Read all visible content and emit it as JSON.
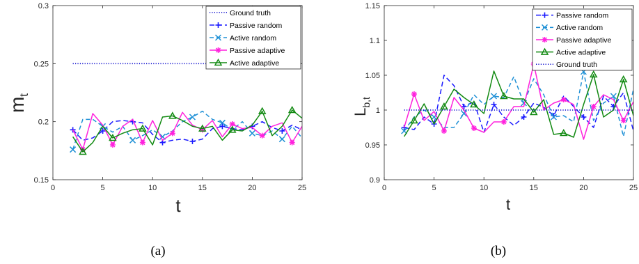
{
  "captions": [
    "(a)",
    "(b)"
  ],
  "chart_data": [
    {
      "type": "line",
      "xlabel": "t",
      "ylabel": "m",
      "ylabel_sub": "t",
      "xlim": [
        0,
        25
      ],
      "ylim": [
        0.15,
        0.3
      ],
      "xticks": [
        "0",
        "5",
        "10",
        "15",
        "20",
        "25"
      ],
      "yticks": [
        "0.15",
        "0.2",
        "0.25",
        "0.3"
      ],
      "grid": false,
      "legend_position": "top-right",
      "series": [
        {
          "name": "Ground truth",
          "color": "#0000cc",
          "dash": "1.2,2.2",
          "marker": "none",
          "marker_every": 1,
          "marker_start": 0,
          "x": [
            2,
            25
          ],
          "y": [
            0.25,
            0.25
          ]
        },
        {
          "name": "Passive random",
          "color": "#1a1aff",
          "dash": "7,4",
          "marker": "plus",
          "marker_every": 3,
          "marker_start": 0,
          "x": [
            2,
            3,
            4,
            5,
            6,
            7,
            8,
            9,
            10,
            11,
            12,
            13,
            14,
            15,
            16,
            17,
            18,
            19,
            20,
            21,
            22,
            23,
            24,
            25
          ],
          "y": [
            0.193,
            0.184,
            0.186,
            0.192,
            0.2,
            0.201,
            0.2,
            0.199,
            0.189,
            0.182,
            0.184,
            0.185,
            0.183,
            0.185,
            0.194,
            0.196,
            0.194,
            0.193,
            0.196,
            0.2,
            0.195,
            0.192,
            0.197,
            0.193
          ]
        },
        {
          "name": "Active random",
          "color": "#1e90d6",
          "dash": "6,4",
          "marker": "x",
          "marker_every": 3,
          "marker_start": 0,
          "x": [
            2,
            3,
            4,
            5,
            6,
            7,
            8,
            9,
            10,
            11,
            12,
            13,
            14,
            15,
            16,
            17,
            18,
            19,
            20,
            21,
            22,
            23,
            24,
            25
          ],
          "y": [
            0.176,
            0.202,
            0.202,
            0.196,
            0.191,
            0.196,
            0.184,
            0.188,
            0.193,
            0.187,
            0.192,
            0.2,
            0.204,
            0.209,
            0.202,
            0.199,
            0.193,
            0.2,
            0.19,
            0.188,
            0.192,
            0.185,
            0.196,
            0.186
          ]
        },
        {
          "name": "Passive adaptive",
          "color": "#ff22dd",
          "dash": "none",
          "marker": "asterisk",
          "marker_every": 3,
          "marker_start": 1,
          "x": [
            2,
            3,
            4,
            5,
            6,
            7,
            8,
            9,
            10,
            11,
            12,
            13,
            14,
            15,
            16,
            17,
            18,
            19,
            20,
            21,
            22,
            23,
            24,
            25
          ],
          "y": [
            0.193,
            0.176,
            0.207,
            0.197,
            0.18,
            0.196,
            0.202,
            0.182,
            0.201,
            0.184,
            0.19,
            0.208,
            0.197,
            0.193,
            0.201,
            0.187,
            0.198,
            0.194,
            0.195,
            0.188,
            0.196,
            0.199,
            0.182,
            0.196
          ]
        },
        {
          "name": "Active adaptive",
          "color": "#128a12",
          "dash": "none",
          "marker": "triangle",
          "marker_every": 3,
          "marker_start": 1,
          "x": [
            2,
            3,
            4,
            5,
            6,
            7,
            8,
            9,
            10,
            11,
            12,
            13,
            14,
            15,
            16,
            17,
            18,
            19,
            20,
            21,
            22,
            23,
            24,
            25
          ],
          "y": [
            0.187,
            0.174,
            0.182,
            0.196,
            0.186,
            0.19,
            0.193,
            0.194,
            0.18,
            0.204,
            0.205,
            0.201,
            0.196,
            0.194,
            0.196,
            0.184,
            0.193,
            0.192,
            0.197,
            0.209,
            0.188,
            0.196,
            0.21,
            0.203
          ]
        }
      ]
    },
    {
      "type": "line",
      "xlabel": "t",
      "ylabel": "L",
      "ylabel_sub": "b,t",
      "xlim": [
        0,
        25
      ],
      "ylim": [
        0.9,
        1.15
      ],
      "xticks": [
        "0",
        "5",
        "10",
        "15",
        "20",
        "25"
      ],
      "yticks": [
        "0.9",
        "0.95",
        "1",
        "1.05",
        "1.1",
        "1.15"
      ],
      "grid": false,
      "legend_position": "top-right",
      "series": [
        {
          "name": "Passive random",
          "color": "#1a1aff",
          "dash": "7,4",
          "marker": "plus",
          "marker_every": 3,
          "marker_start": 0,
          "x": [
            2,
            3,
            4,
            5,
            6,
            7,
            8,
            9,
            10,
            11,
            12,
            13,
            14,
            15,
            16,
            17,
            18,
            19,
            20,
            21,
            22,
            23,
            24,
            25
          ],
          "y": [
            0.975,
            0.972,
            0.99,
            0.98,
            1.05,
            1.035,
            1.005,
            1.012,
            0.968,
            1.008,
            0.99,
            0.978,
            0.99,
            1.01,
            1.004,
            0.992,
            1.02,
            1.005,
            0.99,
            0.975,
            1.02,
            1.005,
            1.025,
            0.97
          ]
        },
        {
          "name": "Active random",
          "color": "#1e90d6",
          "dash": "6,4",
          "marker": "x",
          "marker_every": 3,
          "marker_start": 0,
          "x": [
            2,
            3,
            4,
            5,
            6,
            7,
            8,
            9,
            10,
            11,
            12,
            13,
            14,
            15,
            16,
            17,
            18,
            19,
            20,
            21,
            22,
            23,
            24,
            25
          ],
          "y": [
            0.97,
            0.99,
            1.0,
            0.99,
            0.975,
            0.975,
            0.995,
            1.022,
            1.008,
            1.02,
            1.018,
            1.048,
            1.01,
            1.045,
            1.022,
            0.99,
            0.992,
            0.983,
            1.055,
            0.985,
            1.01,
            1.02,
            0.962,
            1.03
          ]
        },
        {
          "name": "Passive adaptive",
          "color": "#ff22dd",
          "dash": "none",
          "marker": "asterisk",
          "marker_every": 3,
          "marker_start": 1,
          "x": [
            2,
            3,
            4,
            5,
            6,
            7,
            8,
            9,
            10,
            11,
            12,
            13,
            14,
            15,
            16,
            17,
            18,
            19,
            20,
            21,
            22,
            23,
            24,
            25
          ],
          "y": [
            0.975,
            1.023,
            0.985,
            0.998,
            0.97,
            1.018,
            1.0,
            0.974,
            0.968,
            0.983,
            0.983,
            1.005,
            1.005,
            1.066,
            1.0,
            1.01,
            1.015,
            1.008,
            0.958,
            1.005,
            1.022,
            1.015,
            0.985,
            1.012
          ]
        },
        {
          "name": "Active adaptive",
          "color": "#128a12",
          "dash": "none",
          "marker": "triangle",
          "marker_every": 3,
          "marker_start": 1,
          "x": [
            2,
            3,
            4,
            5,
            6,
            7,
            8,
            9,
            10,
            11,
            12,
            13,
            14,
            15,
            16,
            17,
            18,
            19,
            20,
            21,
            22,
            23,
            24,
            25
          ],
          "y": [
            0.962,
            0.985,
            1.009,
            0.98,
            1.005,
            1.03,
            1.018,
            1.008,
            0.995,
            1.056,
            1.02,
            1.016,
            1.016,
            0.997,
            1.015,
            0.965,
            0.967,
            0.961,
            1.008,
            1.051,
            0.99,
            1.0,
            1.044,
            0.992
          ]
        },
        {
          "name": "Ground truth",
          "color": "#0000cc",
          "dash": "1.2,2.2",
          "marker": "none",
          "marker_every": 1,
          "marker_start": 0,
          "x": [
            2,
            25
          ],
          "y": [
            1.0,
            1.0
          ]
        }
      ]
    }
  ]
}
